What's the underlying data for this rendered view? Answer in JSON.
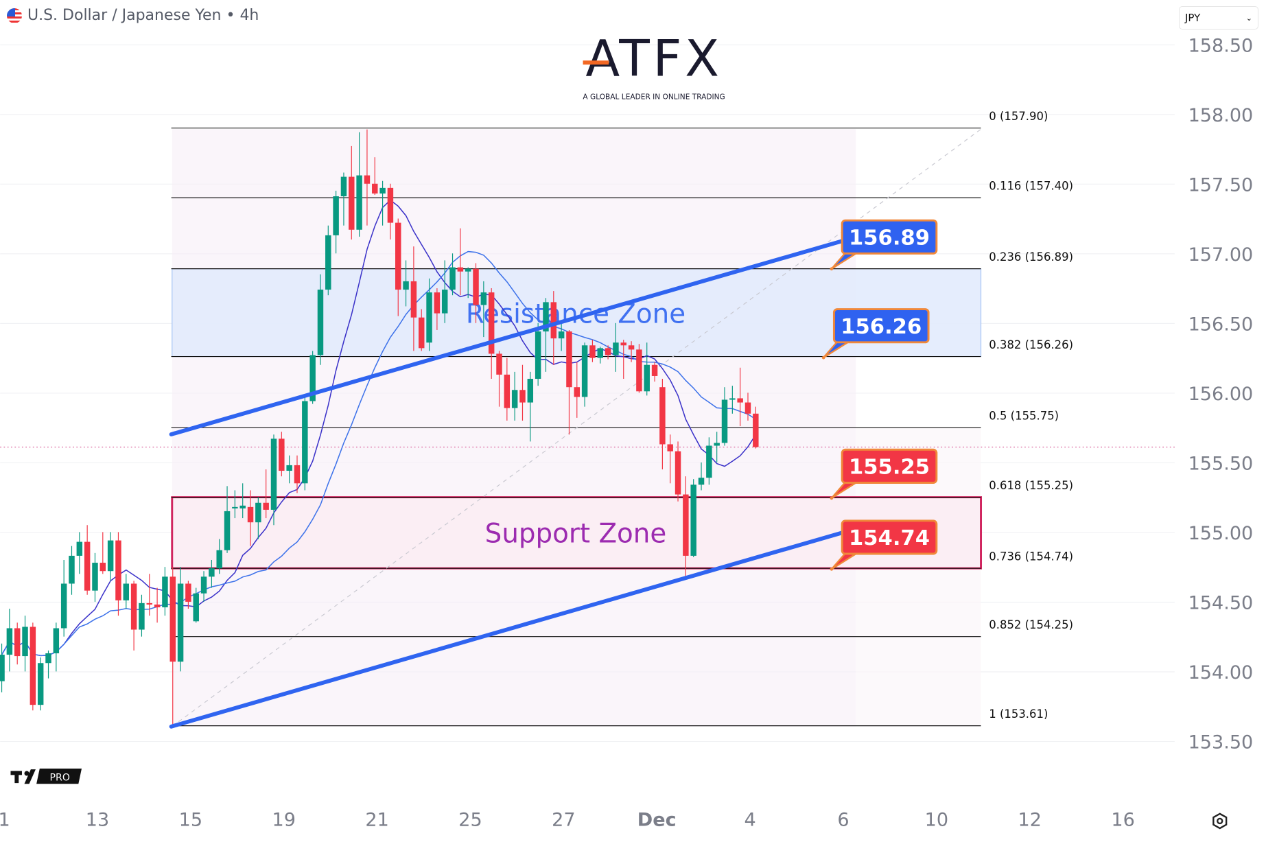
{
  "header": {
    "title": "U.S. Dollar / Japanese Yen • 4h",
    "flag_icon": "us-jp-flag-icon"
  },
  "currency_select": {
    "value": "JPY"
  },
  "logo": {
    "text": "ATFX",
    "tagline": "A GLOBAL LEADER IN ONLINE TRADING"
  },
  "watermark": {
    "text": "PRO"
  },
  "colors": {
    "up": "#089981",
    "down": "#f23645",
    "trendline": "#2f64f0",
    "ma_fast": "#3b32c9",
    "ma_slow": "#3d72ea",
    "resistance_fill": "#e3ecfd",
    "support_border": "#d0245e",
    "callout_blue": "#2f62f0",
    "callout_red": "#f23645",
    "callout_border": "#f0883a"
  },
  "chart_data": {
    "type": "candlestick",
    "symbol": "USDJPY",
    "timeframe": "4h",
    "ylim": [
      153.3,
      158.6
    ],
    "y_ticks": [
      "158.50",
      "158.00",
      "157.50",
      "157.00",
      "156.50",
      "156.00",
      "155.50",
      "155.00",
      "154.50",
      "154.00",
      "153.50"
    ],
    "x_ticks": [
      "1",
      "13",
      "15",
      "19",
      "21",
      "25",
      "27",
      "Dec",
      "4",
      "6",
      "10",
      "12",
      "16"
    ],
    "candles_ohlc": [
      [
        153.93,
        154.2,
        153.85,
        154.12
      ],
      [
        154.12,
        154.45,
        154.0,
        154.31
      ],
      [
        154.31,
        154.35,
        154.05,
        154.11
      ],
      [
        154.11,
        154.4,
        154.0,
        154.32
      ],
      [
        154.32,
        154.35,
        153.72,
        153.76
      ],
      [
        153.76,
        154.1,
        153.72,
        154.06
      ],
      [
        154.06,
        154.15,
        153.95,
        154.13
      ],
      [
        154.13,
        154.35,
        154.0,
        154.31
      ],
      [
        154.31,
        154.8,
        154.25,
        154.63
      ],
      [
        154.63,
        154.9,
        154.55,
        154.83
      ],
      [
        154.83,
        155.0,
        154.7,
        154.93
      ],
      [
        154.93,
        155.05,
        154.55,
        154.58
      ],
      [
        154.58,
        154.85,
        154.5,
        154.78
      ],
      [
        154.78,
        155.0,
        154.7,
        154.72
      ],
      [
        154.72,
        155.0,
        154.65,
        154.94
      ],
      [
        154.94,
        155.0,
        154.4,
        154.51
      ],
      [
        154.51,
        154.7,
        154.45,
        154.63
      ],
      [
        154.63,
        154.65,
        154.15,
        154.3
      ],
      [
        154.3,
        154.55,
        154.25,
        154.49
      ],
      [
        154.49,
        154.7,
        154.4,
        154.48
      ],
      [
        154.48,
        154.6,
        154.35,
        154.46
      ],
      [
        154.46,
        154.75,
        154.4,
        154.68
      ],
      [
        154.68,
        154.75,
        153.61,
        154.07
      ],
      [
        154.07,
        154.75,
        154.0,
        154.63
      ],
      [
        154.63,
        154.65,
        154.45,
        154.5
      ],
      [
        154.36,
        154.6,
        154.35,
        154.56
      ],
      [
        154.56,
        154.72,
        154.5,
        154.68
      ],
      [
        154.68,
        154.8,
        154.6,
        154.74
      ],
      [
        154.74,
        154.95,
        154.7,
        154.87
      ],
      [
        154.87,
        155.33,
        154.85,
        155.15
      ],
      [
        155.17,
        155.3,
        155.1,
        155.18
      ],
      [
        155.17,
        155.35,
        155.1,
        155.19
      ],
      [
        155.18,
        155.3,
        154.9,
        155.07
      ],
      [
        155.07,
        155.25,
        154.95,
        155.21
      ],
      [
        155.21,
        155.45,
        155.1,
        155.16
      ],
      [
        155.16,
        155.7,
        155.05,
        155.67
      ],
      [
        155.67,
        155.72,
        155.4,
        155.44
      ],
      [
        155.44,
        155.55,
        155.35,
        155.48
      ],
      [
        155.48,
        155.55,
        155.28,
        155.35
      ],
      [
        155.35,
        155.97,
        155.3,
        155.94
      ],
      [
        155.94,
        156.3,
        155.92,
        156.27
      ],
      [
        156.27,
        156.85,
        156.2,
        156.74
      ],
      [
        156.74,
        157.2,
        156.7,
        157.13
      ],
      [
        157.13,
        157.45,
        157.0,
        157.41
      ],
      [
        157.41,
        157.58,
        157.2,
        157.55
      ],
      [
        157.55,
        157.77,
        157.1,
        157.17
      ],
      [
        157.17,
        157.87,
        157.12,
        157.56
      ],
      [
        157.56,
        157.89,
        157.2,
        157.5
      ],
      [
        157.5,
        157.69,
        157.42,
        157.43
      ],
      [
        157.43,
        157.52,
        157.2,
        157.47
      ],
      [
        157.47,
        157.5,
        157.1,
        157.22
      ],
      [
        157.22,
        157.25,
        156.55,
        156.74
      ],
      [
        156.74,
        156.95,
        156.62,
        156.8
      ],
      [
        156.8,
        157.05,
        156.3,
        156.54
      ],
      [
        156.54,
        156.6,
        156.3,
        156.32
      ],
      [
        156.36,
        156.82,
        156.3,
        156.72
      ],
      [
        156.72,
        156.75,
        156.45,
        156.57
      ],
      [
        156.57,
        156.95,
        156.5,
        156.74
      ],
      [
        156.74,
        157.0,
        156.7,
        156.9
      ],
      [
        156.9,
        157.18,
        156.7,
        156.87
      ],
      [
        156.87,
        156.9,
        156.68,
        156.89
      ],
      [
        156.89,
        156.93,
        156.5,
        156.63
      ],
      [
        156.63,
        156.8,
        156.4,
        156.72
      ],
      [
        156.72,
        156.75,
        156.1,
        156.28
      ],
      [
        156.28,
        156.3,
        155.9,
        156.13
      ],
      [
        156.13,
        156.25,
        155.8,
        155.89
      ],
      [
        155.89,
        156.15,
        155.8,
        156.02
      ],
      [
        156.02,
        156.2,
        155.8,
        155.93
      ],
      [
        155.93,
        156.15,
        155.65,
        156.1
      ],
      [
        156.1,
        156.5,
        156.05,
        156.44
      ],
      [
        156.44,
        156.68,
        156.15,
        156.65
      ],
      [
        156.65,
        156.73,
        156.2,
        156.39
      ],
      [
        156.39,
        156.5,
        156.3,
        156.44
      ],
      [
        156.44,
        156.45,
        155.7,
        156.04
      ],
      [
        156.04,
        156.22,
        155.82,
        155.97
      ],
      [
        155.97,
        156.36,
        155.9,
        156.34
      ],
      [
        156.34,
        156.38,
        156.22,
        156.25
      ],
      [
        156.25,
        156.33,
        156.21,
        156.32
      ],
      [
        156.32,
        156.34,
        156.24,
        156.27
      ],
      [
        156.27,
        156.5,
        156.15,
        156.36
      ],
      [
        156.36,
        156.38,
        156.1,
        156.34
      ],
      [
        156.34,
        156.37,
        156.22,
        156.31
      ],
      [
        156.31,
        156.35,
        156.0,
        156.01
      ],
      [
        156.01,
        156.36,
        155.98,
        156.2
      ],
      [
        156.2,
        156.22,
        156.08,
        156.12
      ],
      [
        156.04,
        156.1,
        155.45,
        155.63
      ],
      [
        155.63,
        155.7,
        155.35,
        155.58
      ],
      [
        155.58,
        155.65,
        155.22,
        155.27
      ],
      [
        155.27,
        155.4,
        154.66,
        154.83
      ],
      [
        154.83,
        155.38,
        154.82,
        155.34
      ],
      [
        155.34,
        155.5,
        155.3,
        155.39
      ],
      [
        155.39,
        155.68,
        155.34,
        155.62
      ],
      [
        155.62,
        155.72,
        155.5,
        155.64
      ],
      [
        155.64,
        156.04,
        155.62,
        155.95
      ],
      [
        155.95,
        156.05,
        155.85,
        155.96
      ],
      [
        155.96,
        156.18,
        155.76,
        155.93
      ],
      [
        155.93,
        156.0,
        155.8,
        155.85
      ],
      [
        155.85,
        155.9,
        155.6,
        155.61
      ]
    ],
    "moving_averages": [
      {
        "type": "SMA",
        "period": 9,
        "color": "#3b32c9"
      },
      {
        "type": "SMA",
        "period": 20,
        "color": "#3d72ea"
      }
    ],
    "last_price": 155.61,
    "fibonacci": [
      {
        "ratio": 0,
        "price": 157.9,
        "label": "0 (157.90)"
      },
      {
        "ratio": 0.116,
        "price": 157.4,
        "label": "0.116 (157.40)"
      },
      {
        "ratio": 0.236,
        "price": 156.89,
        "label": "0.236 (156.89)"
      },
      {
        "ratio": 0.382,
        "price": 156.26,
        "label": "0.382 (156.26)"
      },
      {
        "ratio": 0.5,
        "price": 155.75,
        "label": "0.5 (155.75)"
      },
      {
        "ratio": 0.618,
        "price": 155.25,
        "label": "0.618 (155.25)"
      },
      {
        "ratio": 0.736,
        "price": 154.74,
        "label": "0.736 (154.74)"
      },
      {
        "ratio": 0.852,
        "price": 154.25,
        "label": "0.852 (154.25)"
      },
      {
        "ratio": 1,
        "price": 153.61,
        "label": "1 (153.61)"
      }
    ],
    "zones": [
      {
        "name": "Resistance Zone",
        "from": 156.26,
        "to": 156.89
      },
      {
        "name": "Support Zone",
        "from": 154.74,
        "to": 155.25
      }
    ],
    "callouts": [
      {
        "text": "156.89",
        "color": "blue"
      },
      {
        "text": "156.26",
        "color": "blue"
      },
      {
        "text": "155.25",
        "color": "red"
      },
      {
        "text": "154.74",
        "color": "red"
      }
    ]
  }
}
